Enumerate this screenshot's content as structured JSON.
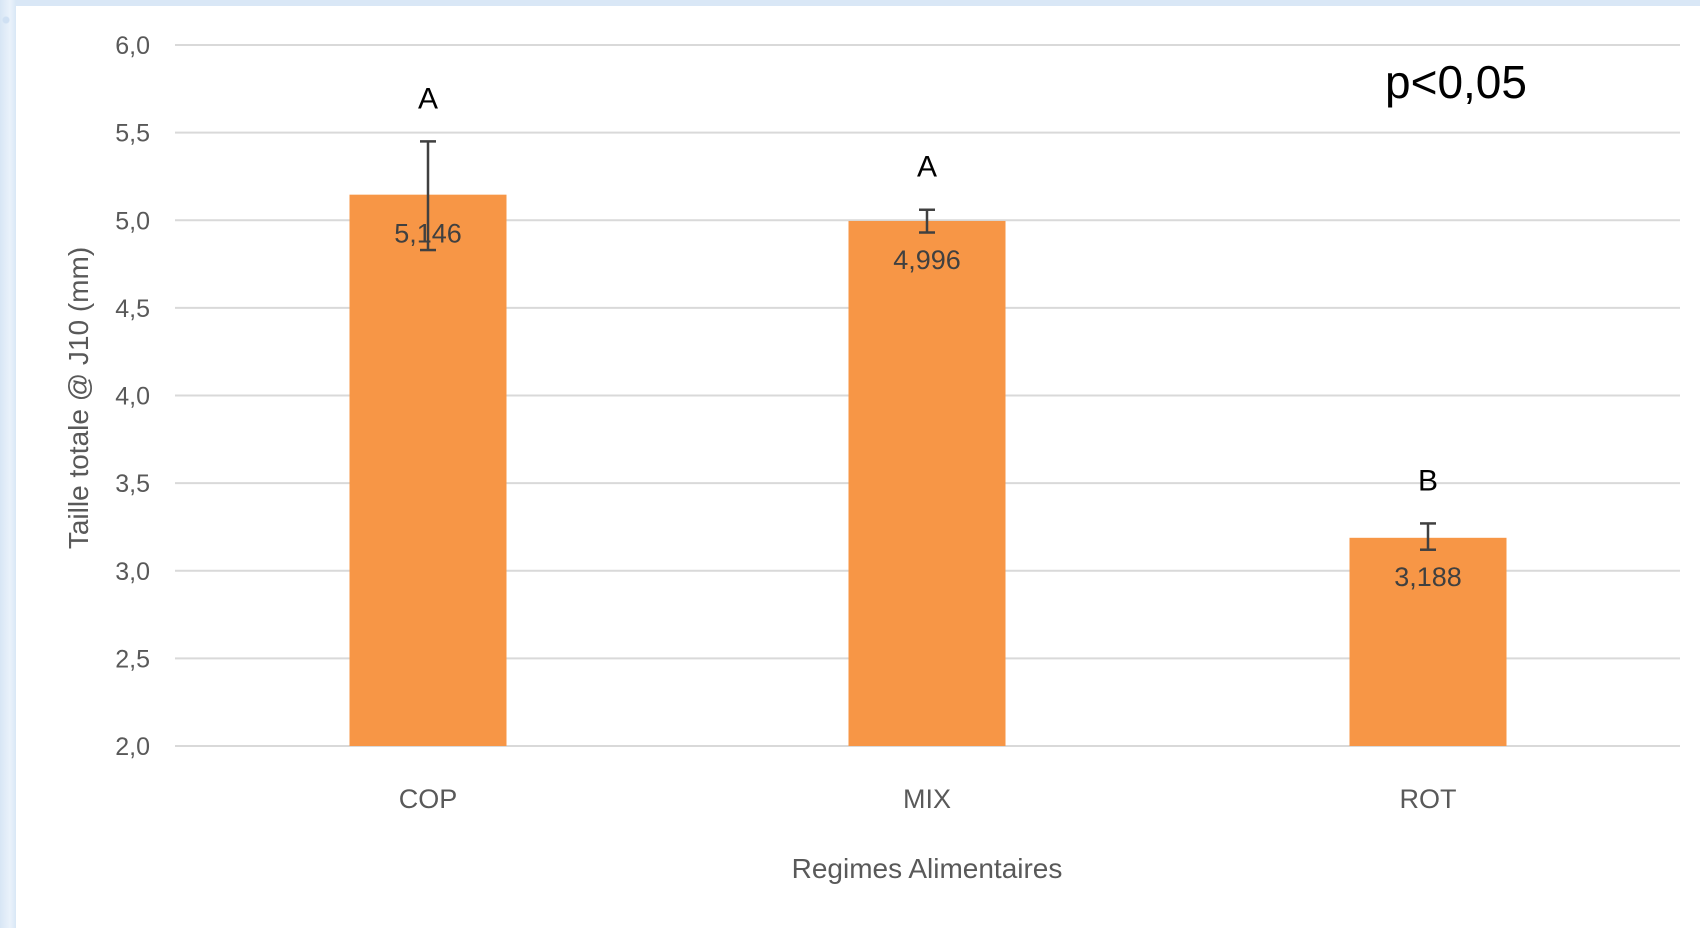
{
  "chart_data": {
    "type": "bar",
    "categories": [
      "COP",
      "MIX",
      "ROT"
    ],
    "values": [
      5.146,
      4.996,
      3.188
    ],
    "value_labels": [
      "5,146",
      "4,996",
      "3,188"
    ],
    "error_bars": [
      {
        "low": 4.83,
        "high": 5.45
      },
      {
        "low": 4.93,
        "high": 5.06
      },
      {
        "low": 3.12,
        "high": 3.27
      }
    ],
    "group_letters": [
      "A",
      "A",
      "B"
    ],
    "annotation": "p<0,05",
    "xlabel": "Regimes Alimentaires",
    "ylabel": "Taille totale @ J10 (mm)",
    "ylim": [
      2.0,
      6.0
    ],
    "yticks": [
      2.0,
      2.5,
      3.0,
      3.5,
      4.0,
      4.5,
      5.0,
      5.5,
      6.0
    ],
    "ytick_labels": [
      "2,0",
      "2,5",
      "3,0",
      "3,5",
      "4,0",
      "4,5",
      "5,0",
      "5,5",
      "6,0"
    ],
    "grid": true,
    "bar_color": "#f79646",
    "gridline_color": "#d9d9d9",
    "error_bar_color": "#404040"
  }
}
